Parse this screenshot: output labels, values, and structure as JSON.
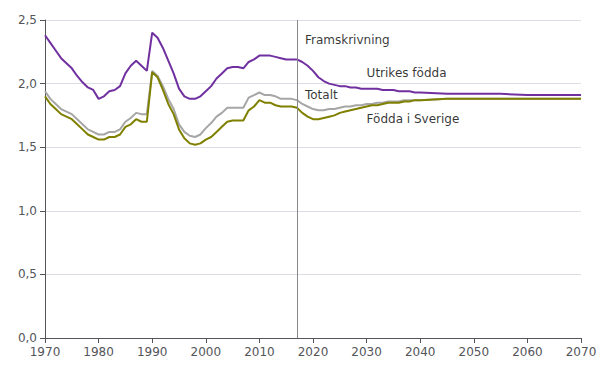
{
  "chart_data": {
    "type": "line",
    "x": [
      1970,
      1971,
      1972,
      1973,
      1974,
      1975,
      1976,
      1977,
      1978,
      1979,
      1980,
      1981,
      1982,
      1983,
      1984,
      1985,
      1986,
      1987,
      1988,
      1989,
      1990,
      1991,
      1992,
      1993,
      1994,
      1995,
      1996,
      1997,
      1998,
      1999,
      2000,
      2001,
      2002,
      2003,
      2004,
      2005,
      2006,
      2007,
      2008,
      2009,
      2010,
      2011,
      2012,
      2013,
      2014,
      2015,
      2016,
      2017,
      2018,
      2019,
      2020,
      2021,
      2022,
      2023,
      2024,
      2025,
      2026,
      2027,
      2028,
      2029,
      2030,
      2031,
      2032,
      2033,
      2034,
      2035,
      2036,
      2037,
      2038,
      2039,
      2040,
      2045,
      2050,
      2055,
      2060,
      2065,
      2070
    ],
    "series": [
      {
        "color": "#7030a0",
        "values": [
          2.38,
          2.32,
          2.26,
          2.2,
          2.16,
          2.12,
          2.06,
          2.01,
          1.97,
          1.95,
          1.88,
          1.9,
          1.94,
          1.95,
          1.98,
          2.08,
          2.14,
          2.18,
          2.14,
          2.1,
          2.4,
          2.36,
          2.28,
          2.18,
          2.08,
          1.96,
          1.9,
          1.88,
          1.88,
          1.9,
          1.94,
          1.98,
          2.04,
          2.08,
          2.12,
          2.13,
          2.13,
          2.12,
          2.17,
          2.19,
          2.22,
          2.22,
          2.22,
          2.21,
          2.2,
          2.19,
          2.19,
          2.19,
          2.17,
          2.14,
          2.1,
          2.05,
          2.02,
          2.0,
          1.99,
          1.98,
          1.98,
          1.97,
          1.97,
          1.96,
          1.96,
          1.96,
          1.96,
          1.95,
          1.95,
          1.95,
          1.94,
          1.94,
          1.94,
          1.93,
          1.93,
          1.92,
          1.92,
          1.92,
          1.91,
          1.91,
          1.91
        ]
      },
      {
        "color": "#a6a6a6",
        "values": [
          1.94,
          1.88,
          1.84,
          1.8,
          1.78,
          1.76,
          1.72,
          1.68,
          1.64,
          1.62,
          1.6,
          1.6,
          1.62,
          1.62,
          1.64,
          1.7,
          1.73,
          1.77,
          1.76,
          1.76,
          2.1,
          2.06,
          1.98,
          1.88,
          1.8,
          1.68,
          1.62,
          1.59,
          1.58,
          1.6,
          1.65,
          1.69,
          1.74,
          1.77,
          1.81,
          1.81,
          1.81,
          1.81,
          1.89,
          1.91,
          1.93,
          1.91,
          1.91,
          1.9,
          1.88,
          1.88,
          1.88,
          1.87,
          1.84,
          1.82,
          1.8,
          1.79,
          1.79,
          1.8,
          1.8,
          1.81,
          1.82,
          1.82,
          1.83,
          1.83,
          1.84,
          1.84,
          1.85,
          1.85,
          1.86,
          1.86,
          1.86,
          1.87,
          1.87,
          1.87,
          1.87,
          1.88,
          1.88,
          1.88,
          1.88,
          1.88,
          1.88
        ]
      },
      {
        "color": "#808000",
        "values": [
          1.9,
          1.84,
          1.8,
          1.76,
          1.74,
          1.72,
          1.68,
          1.64,
          1.6,
          1.58,
          1.56,
          1.56,
          1.58,
          1.58,
          1.6,
          1.66,
          1.68,
          1.72,
          1.7,
          1.7,
          2.09,
          2.05,
          1.95,
          1.84,
          1.76,
          1.64,
          1.57,
          1.53,
          1.52,
          1.53,
          1.56,
          1.58,
          1.62,
          1.66,
          1.7,
          1.71,
          1.71,
          1.71,
          1.79,
          1.82,
          1.87,
          1.85,
          1.85,
          1.83,
          1.82,
          1.82,
          1.82,
          1.81,
          1.77,
          1.74,
          1.72,
          1.72,
          1.73,
          1.74,
          1.75,
          1.77,
          1.78,
          1.79,
          1.8,
          1.81,
          1.82,
          1.83,
          1.83,
          1.84,
          1.85,
          1.85,
          1.85,
          1.86,
          1.86,
          1.87,
          1.87,
          1.88,
          1.88,
          1.88,
          1.88,
          1.88,
          1.88
        ]
      }
    ],
    "forecast_start": 2017,
    "annotations": [
      {
        "text": "Framskrivning",
        "x": 2018.5,
        "y": 2.34
      },
      {
        "text": "Utrikes födda",
        "x": 2030,
        "y": 2.08
      },
      {
        "text": "Totalt",
        "x": 2018.5,
        "y": 1.91
      },
      {
        "text": "Födda i Sverige",
        "x": 2030,
        "y": 1.72
      }
    ],
    "xlim": [
      1970,
      2070
    ],
    "xticks": [
      1970,
      1980,
      1990,
      2000,
      2010,
      2020,
      2030,
      2040,
      2050,
      2060,
      2070
    ],
    "ylim": [
      0.0,
      2.5
    ],
    "yticks": [
      {
        "value": 0.0,
        "label": "0,0"
      },
      {
        "value": 0.5,
        "label": "0,5"
      },
      {
        "value": 1.0,
        "label": "1,0"
      },
      {
        "value": 1.5,
        "label": "1,5"
      },
      {
        "value": 2.0,
        "label": "2,0"
      },
      {
        "value": 2.5,
        "label": "2,5"
      }
    ],
    "grid": true
  }
}
